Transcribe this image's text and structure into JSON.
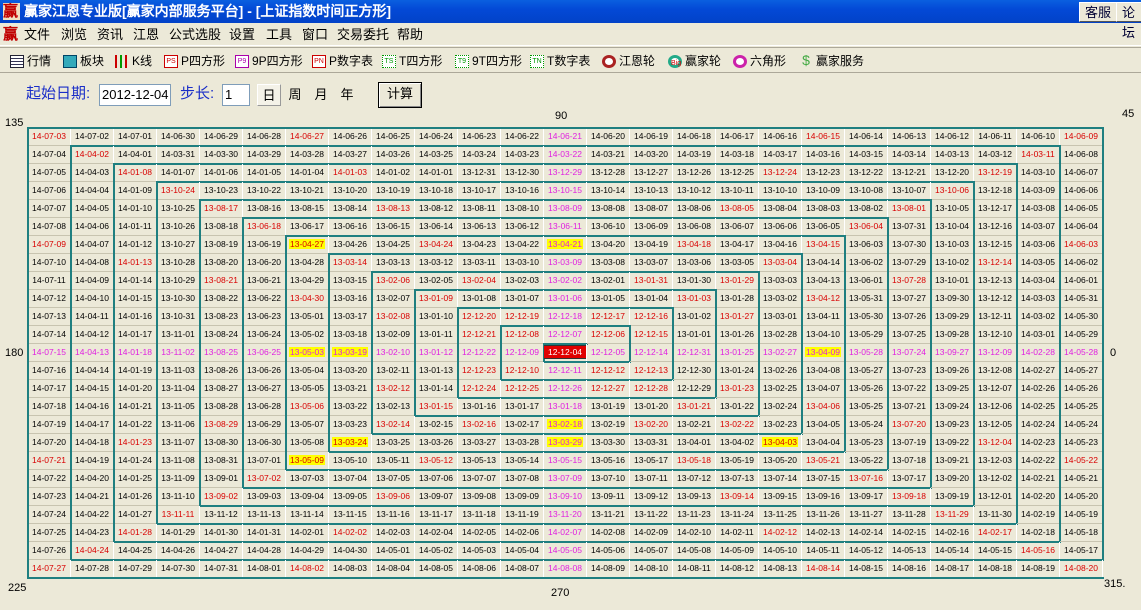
{
  "window": {
    "title": "赢家江恩专业版[赢家内部服务平台] - [上证指数时间正方形]",
    "logo": "赢",
    "buttons": [
      "客服",
      "论坛"
    ]
  },
  "menu": [
    "文件",
    "浏览",
    "资讯",
    "江恩",
    "公式选股",
    "设置",
    "工具",
    "窗口",
    "交易委托",
    "帮助"
  ],
  "toolbar": [
    {
      "label": "行情",
      "icon": "quote-table-icon",
      "tag": ""
    },
    {
      "label": "板块",
      "icon": "sector-blocks-icon",
      "tag": ""
    },
    {
      "label": "K线",
      "icon": "candlestick-icon",
      "tag": ""
    },
    {
      "label": "P四方形",
      "icon": "ps-icon",
      "tag": "PS"
    },
    {
      "label": "9P四方形",
      "icon": "p9-icon",
      "tag": "P9"
    },
    {
      "label": "P数字表",
      "icon": "pn-icon",
      "tag": "PN"
    },
    {
      "label": "T四方形",
      "icon": "ts-icon",
      "tag": "TS"
    },
    {
      "label": "9T四方形",
      "icon": "t9-icon",
      "tag": "T9"
    },
    {
      "label": "T数字表",
      "icon": "tn-icon",
      "tag": "TN"
    },
    {
      "label": "江恩轮",
      "icon": "gann-wheel-icon",
      "tag": ""
    },
    {
      "label": "赢家轮",
      "icon": "winner-wheel-icon",
      "tag": "Big"
    },
    {
      "label": "六角形",
      "icon": "hexagon-icon",
      "tag": ""
    },
    {
      "label": "赢家服务",
      "icon": "dollar-icon",
      "tag": "$"
    }
  ],
  "form": {
    "start_label": "起始日期:",
    "start_date": "2012-12-04",
    "step_label": "步长:",
    "step": "1",
    "units": [
      "日",
      "周",
      "月",
      "年"
    ],
    "selected_unit": "日",
    "calc_label": "计算"
  },
  "angles": {
    "a135": "135",
    "a90": "90",
    "a45": "45",
    "a180": "180",
    "a0": "0",
    "a225": "225",
    "a270": "270",
    "a315": "315."
  },
  "grid": {
    "size": 25,
    "date_format": "YY-MM-DD",
    "highlight_dates": [
      "13-04-27",
      "13-04-21",
      "13-05-03",
      "13-03-19",
      "13-02-18",
      "13-03-24",
      "13-03-29",
      "13-05-09",
      "13-04-09",
      "13-04-03"
    ],
    "center_date": "12-12-04"
  },
  "colors": {
    "axis_text": "#e020e0",
    "angle_text": "#d80000",
    "highlight_bg": "#ffff00",
    "center_bg": "#e00000",
    "wall": "#1f7f80",
    "cell_bg": "#ece9d8"
  }
}
